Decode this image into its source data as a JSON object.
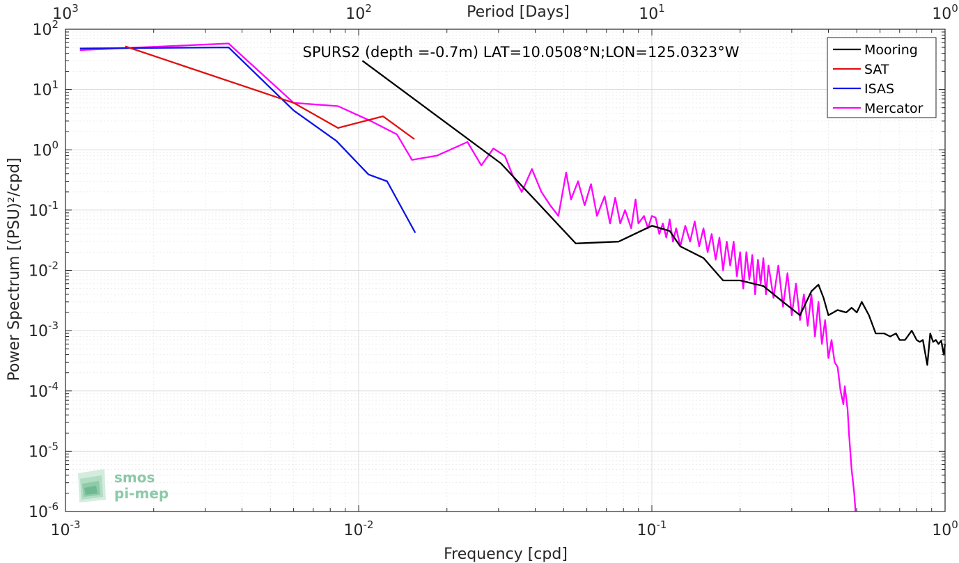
{
  "chart_data": {
    "type": "line",
    "title": "SPURS2 (depth =-0.7m) LAT=10.0508°N;LON=125.0323°W",
    "xlabel": "Frequency [cpd]",
    "ylabel": "Power Spectrum [(PSU)²/cpd]",
    "top_xlabel": "Period [Days]",
    "xscale": "log",
    "yscale": "log",
    "xlim": [
      0.001,
      1
    ],
    "ylim": [
      1e-06,
      100
    ],
    "grid": true,
    "legend_position": "top-right",
    "x_ticks": [
      {
        "value": 0.001,
        "base": "10",
        "exp": "-3"
      },
      {
        "value": 0.01,
        "base": "10",
        "exp": "-2"
      },
      {
        "value": 0.1,
        "base": "10",
        "exp": "-1"
      },
      {
        "value": 1,
        "base": "10",
        "exp": "0"
      }
    ],
    "top_ticks": [
      {
        "value": 0.001,
        "base": "10",
        "exp": "3"
      },
      {
        "value": 0.01,
        "base": "10",
        "exp": "2"
      },
      {
        "value": 0.1,
        "base": "10",
        "exp": "1"
      },
      {
        "value": 1,
        "base": "10",
        "exp": "0"
      }
    ],
    "y_ticks": [
      {
        "value": 100,
        "base": "10",
        "exp": "2"
      },
      {
        "value": 10,
        "base": "10",
        "exp": "1"
      },
      {
        "value": 1,
        "base": "10",
        "exp": "0"
      },
      {
        "value": 0.1,
        "base": "10",
        "exp": "-1"
      },
      {
        "value": 0.01,
        "base": "10",
        "exp": "-2"
      },
      {
        "value": 0.001,
        "base": "10",
        "exp": "-3"
      },
      {
        "value": 0.0001,
        "base": "10",
        "exp": "-4"
      },
      {
        "value": 1e-05,
        "base": "10",
        "exp": "-5"
      },
      {
        "value": 1e-06,
        "base": "10",
        "exp": "-6"
      }
    ],
    "series": [
      {
        "name": "Mooring",
        "color": "#000000",
        "points": [
          [
            0.0103,
            30
          ],
          [
            0.0305,
            0.6
          ],
          [
            0.055,
            0.028
          ],
          [
            0.077,
            0.03
          ],
          [
            0.1,
            0.055
          ],
          [
            0.115,
            0.045
          ],
          [
            0.125,
            0.025
          ],
          [
            0.15,
            0.016
          ],
          [
            0.175,
            0.0068
          ],
          [
            0.2,
            0.0068
          ],
          [
            0.24,
            0.0055
          ],
          [
            0.28,
            0.003
          ],
          [
            0.32,
            0.0018
          ],
          [
            0.35,
            0.0045
          ],
          [
            0.37,
            0.0058
          ],
          [
            0.385,
            0.0035
          ],
          [
            0.4,
            0.0018
          ],
          [
            0.43,
            0.0022
          ],
          [
            0.46,
            0.002
          ],
          [
            0.48,
            0.0024
          ],
          [
            0.5,
            0.002
          ],
          [
            0.52,
            0.003
          ],
          [
            0.55,
            0.0018
          ],
          [
            0.58,
            0.0009
          ],
          [
            0.62,
            0.0009
          ],
          [
            0.65,
            0.0008
          ],
          [
            0.68,
            0.0009
          ],
          [
            0.7,
            0.0007
          ],
          [
            0.73,
            0.0007
          ],
          [
            0.77,
            0.001
          ],
          [
            0.8,
            0.0007
          ],
          [
            0.82,
            0.00065
          ],
          [
            0.84,
            0.0007
          ],
          [
            0.87,
            0.00027
          ],
          [
            0.89,
            0.0009
          ],
          [
            0.91,
            0.00065
          ],
          [
            0.93,
            0.0007
          ],
          [
            0.95,
            0.0006
          ],
          [
            0.97,
            0.00068
          ],
          [
            0.99,
            0.0004
          ],
          [
            1.0,
            0.0006
          ]
        ]
      },
      {
        "name": "SAT",
        "color": "#e01010",
        "points": [
          [
            0.0016,
            52
          ],
          [
            0.006,
            6
          ],
          [
            0.0085,
            2.3
          ],
          [
            0.0121,
            3.6
          ],
          [
            0.0155,
            1.5
          ]
        ]
      },
      {
        "name": "ISAS",
        "color": "#0a14e6",
        "points": [
          [
            0.00112,
            48
          ],
          [
            0.0036,
            50
          ],
          [
            0.006,
            4.5
          ],
          [
            0.0084,
            1.4
          ],
          [
            0.0108,
            0.39
          ],
          [
            0.0125,
            0.3
          ],
          [
            0.0156,
            0.042
          ]
        ]
      },
      {
        "name": "Mercator",
        "color": "#ff00ff",
        "points": [
          [
            0.00112,
            45
          ],
          [
            0.0036,
            58
          ],
          [
            0.006,
            6
          ],
          [
            0.0085,
            5.3
          ],
          [
            0.011,
            3
          ],
          [
            0.0135,
            1.8
          ],
          [
            0.0152,
            0.68
          ],
          [
            0.0185,
            0.8
          ],
          [
            0.0235,
            1.35
          ],
          [
            0.0262,
            0.55
          ],
          [
            0.0288,
            1.05
          ],
          [
            0.0315,
            0.8
          ],
          [
            0.0335,
            0.38
          ],
          [
            0.036,
            0.2
          ],
          [
            0.039,
            0.48
          ],
          [
            0.042,
            0.2
          ],
          [
            0.045,
            0.12
          ],
          [
            0.048,
            0.08
          ],
          [
            0.051,
            0.42
          ],
          [
            0.053,
            0.15
          ],
          [
            0.056,
            0.3
          ],
          [
            0.059,
            0.12
          ],
          [
            0.062,
            0.27
          ],
          [
            0.065,
            0.08
          ],
          [
            0.069,
            0.17
          ],
          [
            0.072,
            0.06
          ],
          [
            0.075,
            0.16
          ],
          [
            0.078,
            0.06
          ],
          [
            0.081,
            0.1
          ],
          [
            0.085,
            0.05
          ],
          [
            0.088,
            0.15
          ],
          [
            0.09,
            0.06
          ],
          [
            0.094,
            0.08
          ],
          [
            0.097,
            0.05
          ],
          [
            0.1,
            0.08
          ],
          [
            0.103,
            0.075
          ],
          [
            0.106,
            0.04
          ],
          [
            0.109,
            0.06
          ],
          [
            0.112,
            0.035
          ],
          [
            0.115,
            0.07
          ],
          [
            0.118,
            0.03
          ],
          [
            0.121,
            0.05
          ],
          [
            0.125,
            0.025
          ],
          [
            0.13,
            0.055
          ],
          [
            0.135,
            0.03
          ],
          [
            0.14,
            0.065
          ],
          [
            0.145,
            0.025
          ],
          [
            0.15,
            0.05
          ],
          [
            0.155,
            0.02
          ],
          [
            0.16,
            0.04
          ],
          [
            0.165,
            0.015
          ],
          [
            0.17,
            0.035
          ],
          [
            0.175,
            0.01
          ],
          [
            0.18,
            0.03
          ],
          [
            0.185,
            0.012
          ],
          [
            0.19,
            0.03
          ],
          [
            0.195,
            0.008
          ],
          [
            0.2,
            0.02
          ],
          [
            0.205,
            0.005
          ],
          [
            0.21,
            0.02
          ],
          [
            0.215,
            0.007
          ],
          [
            0.22,
            0.018
          ],
          [
            0.225,
            0.004
          ],
          [
            0.23,
            0.015
          ],
          [
            0.235,
            0.006
          ],
          [
            0.24,
            0.016
          ],
          [
            0.245,
            0.004
          ],
          [
            0.25,
            0.012
          ],
          [
            0.26,
            0.0035
          ],
          [
            0.27,
            0.012
          ],
          [
            0.28,
            0.0025
          ],
          [
            0.29,
            0.009
          ],
          [
            0.3,
            0.0018
          ],
          [
            0.31,
            0.006
          ],
          [
            0.32,
            0.0015
          ],
          [
            0.33,
            0.004
          ],
          [
            0.34,
            0.0012
          ],
          [
            0.35,
            0.004
          ],
          [
            0.36,
            0.0008
          ],
          [
            0.37,
            0.003
          ],
          [
            0.38,
            0.0006
          ],
          [
            0.39,
            0.0015
          ],
          [
            0.4,
            0.00035
          ],
          [
            0.41,
            0.0007
          ],
          [
            0.42,
            0.0003
          ],
          [
            0.43,
            0.00025
          ],
          [
            0.44,
            0.0001
          ],
          [
            0.45,
            6e-05
          ],
          [
            0.455,
            0.00012
          ],
          [
            0.465,
            5e-05
          ],
          [
            0.47,
            2e-05
          ],
          [
            0.48,
            5e-06
          ],
          [
            0.49,
            2e-06
          ],
          [
            0.495,
            1e-06
          ]
        ]
      }
    ],
    "legend": [
      "Mooring",
      "SAT",
      "ISAS",
      "Mercator"
    ]
  },
  "logo": {
    "line1": "smos",
    "line2": "pi-mep"
  }
}
